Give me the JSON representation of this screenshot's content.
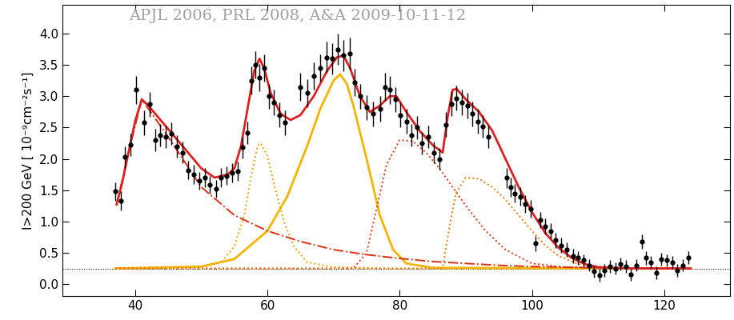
{
  "chart_data": {
    "type": "scatter",
    "y_label": "I>200 GeV [ 10⁻⁹cm⁻²s⁻¹]",
    "annotations": [
      {
        "text": "APJL 2006, PRL 2008, A&A 2009-10-11-12",
        "color": "#a0a0a0"
      }
    ],
    "xlim": [
      29,
      130
    ],
    "ylim": [
      -0.19,
      4.46
    ],
    "xticks": [
      40,
      60,
      80,
      100,
      120
    ],
    "yticks": [
      {
        "value": 0.0,
        "label": "0.0"
      },
      {
        "value": 0.5,
        "label": "0.5"
      },
      {
        "value": 1.0,
        "label": "1.0"
      },
      {
        "value": 1.5,
        "label": "1.5"
      },
      {
        "value": 2.0,
        "label": "2.0"
      },
      {
        "value": 2.5,
        "label": "2.5"
      },
      {
        "value": 3.0,
        "label": "3.0"
      },
      {
        "value": 3.5,
        "label": "3.5"
      },
      {
        "value": 4.0,
        "label": "4.0"
      }
    ],
    "grid": false,
    "baseline": 0.24,
    "series": [
      {
        "type": "scatter",
        "color": "#000000",
        "marker": "circle",
        "x": [
          37.0,
          37.8,
          38.5,
          39.3,
          40.2,
          41.3,
          42.2,
          43.0,
          43.8,
          44.6,
          45.5,
          46.3,
          47.2,
          48.0,
          48.8,
          49.7,
          50.5,
          51.3,
          52.2,
          53.0,
          53.8,
          54.7,
          55.5,
          56.3,
          57.0,
          57.6,
          58.2,
          58.8,
          59.5,
          60.2,
          61.0,
          61.8,
          62.6,
          65.0,
          66.0,
          67.0,
          68.0,
          69.0,
          69.8,
          70.6,
          71.5,
          72.4,
          73.2,
          74.0,
          75.0,
          76.0,
          77.0,
          77.8,
          78.5,
          79.3,
          80.1,
          81.0,
          81.8,
          82.6,
          83.4,
          84.3,
          85.2,
          86.0,
          87.0,
          87.8,
          88.6,
          89.4,
          90.2,
          91.0,
          91.8,
          92.6,
          93.4,
          96.2,
          96.8,
          97.4,
          98.2,
          99.0,
          99.8,
          100.5,
          101.3,
          102.0,
          102.8,
          103.6,
          104.4,
          105.3,
          106.2,
          107.0,
          107.8,
          108.6,
          109.4,
          110.2,
          111.0,
          111.8,
          112.6,
          113.4,
          114.2,
          115.0,
          115.8,
          116.6,
          117.3,
          118.0,
          118.8,
          119.6,
          120.4,
          121.2,
          122.0,
          122.8,
          123.6
        ],
        "values": [
          1.48,
          1.33,
          2.03,
          2.22,
          3.1,
          2.58,
          2.87,
          2.3,
          2.38,
          2.35,
          2.4,
          2.2,
          2.1,
          1.82,
          1.75,
          1.65,
          1.7,
          1.58,
          1.52,
          1.7,
          1.73,
          1.78,
          1.8,
          2.18,
          2.42,
          3.25,
          3.5,
          3.3,
          3.45,
          3.0,
          2.9,
          2.7,
          2.58,
          3.15,
          3.05,
          3.32,
          3.45,
          3.62,
          3.6,
          3.75,
          3.65,
          3.68,
          3.22,
          3.0,
          2.82,
          2.72,
          2.8,
          3.15,
          3.1,
          2.95,
          2.7,
          2.6,
          2.38,
          2.5,
          2.25,
          2.35,
          2.1,
          2.0,
          2.55,
          2.88,
          2.97,
          2.9,
          2.85,
          2.72,
          2.6,
          2.52,
          2.35,
          1.7,
          1.55,
          1.45,
          1.4,
          1.28,
          1.2,
          0.65,
          1.02,
          0.92,
          0.85,
          0.7,
          0.62,
          0.55,
          0.45,
          0.42,
          0.38,
          0.3,
          0.2,
          0.14,
          0.22,
          0.28,
          0.25,
          0.32,
          0.28,
          0.15,
          0.3,
          0.68,
          0.42,
          0.35,
          0.18,
          0.4,
          0.38,
          0.35,
          0.22,
          0.3,
          0.42
        ],
        "errors": [
          0.15,
          0.15,
          0.17,
          0.18,
          0.22,
          0.2,
          0.2,
          0.18,
          0.18,
          0.18,
          0.18,
          0.18,
          0.17,
          0.15,
          0.15,
          0.14,
          0.15,
          0.14,
          0.14,
          0.15,
          0.15,
          0.15,
          0.15,
          0.17,
          0.18,
          0.22,
          0.22,
          0.22,
          0.22,
          0.2,
          0.2,
          0.2,
          0.2,
          0.22,
          0.22,
          0.22,
          0.22,
          0.25,
          0.25,
          0.25,
          0.25,
          0.25,
          0.22,
          0.2,
          0.2,
          0.2,
          0.2,
          0.22,
          0.22,
          0.2,
          0.2,
          0.2,
          0.18,
          0.18,
          0.18,
          0.18,
          0.17,
          0.17,
          0.2,
          0.2,
          0.2,
          0.2,
          0.2,
          0.2,
          0.2,
          0.18,
          0.18,
          0.16,
          0.15,
          0.15,
          0.15,
          0.14,
          0.14,
          0.12,
          0.13,
          0.13,
          0.12,
          0.12,
          0.12,
          0.12,
          0.11,
          0.11,
          0.1,
          0.1,
          0.1,
          0.1,
          0.1,
          0.1,
          0.1,
          0.1,
          0.1,
          0.1,
          0.1,
          0.12,
          0.11,
          0.1,
          0.1,
          0.1,
          0.1,
          0.1,
          0.1,
          0.1,
          0.1
        ]
      },
      {
        "type": "line",
        "color": "#f0a000",
        "line_style": "dotted",
        "x": [
          37,
          50,
          53,
          55,
          56.5,
          57.5,
          58.5,
          59,
          60,
          61,
          62.5,
          64,
          66,
          70,
          80,
          124
        ],
        "values": [
          0.25,
          0.27,
          0.35,
          0.6,
          1.1,
          1.7,
          2.2,
          2.25,
          2.05,
          1.6,
          1.0,
          0.6,
          0.35,
          0.27,
          0.25,
          0.25
        ]
      },
      {
        "type": "line",
        "color": "#f5b400",
        "line_style": "solid",
        "x": [
          37,
          50,
          55,
          60,
          63,
          66,
          68,
          70,
          71,
          72,
          73,
          75,
          77,
          79,
          81,
          85,
          124
        ],
        "values": [
          0.25,
          0.28,
          0.4,
          0.85,
          1.4,
          2.2,
          2.8,
          3.25,
          3.35,
          3.2,
          2.85,
          2.0,
          1.1,
          0.55,
          0.33,
          0.26,
          0.25
        ]
      },
      {
        "type": "line",
        "color": "#e83010",
        "line_style": "dotted",
        "x": [
          37,
          73,
          75,
          76.5,
          78,
          80,
          82,
          84,
          86,
          88,
          90,
          93,
          96,
          100,
          105,
          124
        ],
        "values": [
          0.25,
          0.25,
          0.5,
          1.2,
          1.9,
          2.3,
          2.28,
          2.1,
          1.85,
          1.55,
          1.25,
          0.85,
          0.55,
          0.33,
          0.27,
          0.25
        ]
      },
      {
        "type": "line",
        "color": "#f07800",
        "line_style": "dotted",
        "x": [
          37,
          86.5,
          87.5,
          88.5,
          90,
          92,
          94,
          96,
          98,
          100,
          102,
          104,
          107,
          112,
          124
        ],
        "values": [
          0.25,
          0.25,
          0.9,
          1.45,
          1.7,
          1.68,
          1.55,
          1.35,
          1.1,
          0.85,
          0.62,
          0.45,
          0.32,
          0.26,
          0.25
        ]
      },
      {
        "type": "line",
        "color": "#e03010",
        "line_style": "dashdot",
        "x": [
          37.2,
          39,
          41,
          43,
          45,
          50,
          55,
          60,
          65,
          70,
          75,
          80,
          85,
          90,
          95,
          100,
          110,
          124
        ],
        "values": [
          1.27,
          2.1,
          2.95,
          2.65,
          2.35,
          1.55,
          1.1,
          0.85,
          0.68,
          0.55,
          0.47,
          0.41,
          0.36,
          0.33,
          0.3,
          0.28,
          0.26,
          0.25
        ]
      },
      {
        "type": "line",
        "color": "#e02020",
        "line_style": "solid",
        "x": [
          37.2,
          38,
          39,
          40,
          41,
          42,
          44,
          46,
          48,
          50,
          52,
          54,
          55,
          56,
          57,
          58,
          58.8,
          59.5,
          60.5,
          62,
          63.5,
          65,
          67,
          69,
          70.5,
          71.5,
          72.5,
          74,
          75.5,
          77,
          78.5,
          79.5,
          81,
          83,
          85,
          86.5,
          87.3,
          88,
          88.6,
          90,
          92,
          94,
          96,
          98,
          100,
          102,
          104,
          106,
          108,
          110,
          115,
          124
        ],
        "values": [
          1.27,
          1.6,
          2.1,
          2.6,
          2.95,
          2.85,
          2.6,
          2.35,
          2.1,
          1.85,
          1.7,
          1.75,
          1.85,
          2.2,
          2.8,
          3.4,
          3.6,
          3.45,
          3.05,
          2.72,
          2.62,
          2.7,
          3.0,
          3.4,
          3.62,
          3.65,
          3.45,
          3.0,
          2.75,
          2.85,
          3.0,
          3.0,
          2.75,
          2.45,
          2.22,
          2.1,
          2.7,
          3.1,
          3.12,
          2.95,
          2.75,
          2.45,
          2.0,
          1.55,
          1.15,
          0.82,
          0.58,
          0.42,
          0.32,
          0.27,
          0.25,
          0.25
        ]
      }
    ]
  }
}
